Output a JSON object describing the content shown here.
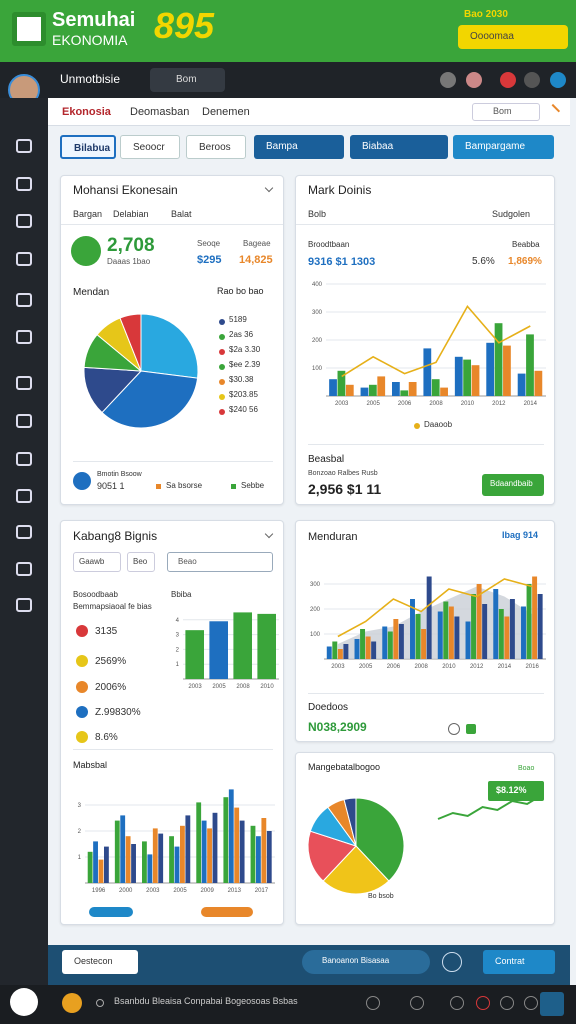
{
  "header": {
    "brand": "Semuhai",
    "brand_sub": "EKONOMIA",
    "score": "895",
    "note": "Bao 2030",
    "button": "Oooomaa"
  },
  "topbar": {
    "user": "Unmotbisie",
    "search": "Bom"
  },
  "nav": {
    "tabs": [
      "Ekonosia",
      "Deomasban",
      "Denemen"
    ],
    "search": "Bom"
  },
  "toolbar": [
    "Bilabua",
    "Seoocr",
    "Beroos",
    "Bampa",
    "Biabaa",
    "Bampargame"
  ],
  "card1": {
    "title": "Mohansi Ekonesain",
    "tabs": [
      "Bargan",
      "Delabian",
      "Balat"
    ],
    "kpi": "2,708",
    "kpi_sub": "Daaas 1bao",
    "stats": [
      {
        "label": "Seoqe",
        "value": "$295"
      },
      {
        "label": "Bageae",
        "value": "14,825"
      }
    ],
    "section": "Mendan",
    "section_right": "Rao bo bao",
    "pie": {
      "type": "pie",
      "values": [
        27,
        35,
        14,
        10,
        8,
        6
      ],
      "colors": [
        "#29a8e0",
        "#1e6fc0",
        "#2e4a8c",
        "#3aa53a",
        "#e6c619",
        "#d8383a"
      ]
    },
    "legend": [
      {
        "label": "5189",
        "color": "#2e4a8c"
      },
      {
        "label": "2as 36",
        "color": "#3aa53a"
      },
      {
        "label": "$2a 3.30",
        "color": "#d8383a"
      },
      {
        "label": "$ee 2.39",
        "color": "#3aa53a"
      },
      {
        "label": "$30.38",
        "color": "#e8872a"
      },
      {
        "label": "$203.85",
        "color": "#e6c619"
      },
      {
        "label": "$240 56",
        "color": "#d8383a"
      }
    ],
    "footer": {
      "name": "Bmotin Bsoow",
      "value": "9051 1",
      "links": [
        "Sa bsorse",
        "Sebbe"
      ]
    }
  },
  "card2": {
    "title": "Mark Doinis",
    "sub": "Bolb",
    "select": "Sudgolen",
    "stat_left": {
      "label": "Broodtbaan",
      "value": "9316 $1 1303"
    },
    "stat_right": {
      "label": "Beabba",
      "value": "5.6%",
      "value2": "1,869%"
    },
    "chart": {
      "type": "bar",
      "categories": [
        "2003",
        "2005",
        "2006",
        "2008",
        "2010",
        "2012",
        "2014"
      ],
      "ylim": [
        0,
        400
      ],
      "yticks": [
        100,
        200,
        300,
        400
      ],
      "series": [
        {
          "color": "#1e6fc0",
          "values": [
            60,
            30,
            50,
            170,
            140,
            190,
            80
          ]
        },
        {
          "color": "#3aa53a",
          "values": [
            90,
            40,
            20,
            60,
            130,
            260,
            220
          ]
        },
        {
          "color": "#e8872a",
          "values": [
            40,
            70,
            50,
            30,
            110,
            180,
            90
          ]
        }
      ],
      "line": {
        "color": "#e6b019",
        "values": [
          70,
          140,
          80,
          120,
          320,
          190,
          250
        ]
      }
    },
    "legend": "Daaoob",
    "section": "Beasbal",
    "section_sub": "Bonzoao Ralbes Rusb",
    "total": "2,956 $1 11",
    "button": "Bdaandbaib"
  },
  "card3": {
    "title": "Kabang8 Bignis",
    "filters": [
      "Gaawb",
      "Beo"
    ],
    "search": "Beao",
    "label": "Bosoodbaab",
    "label_sub": "Bemmapsiaoal fe bias",
    "mini_title": "Bbiba",
    "list": [
      {
        "value": "3135",
        "color": "#d8383a"
      },
      {
        "value": "2569%",
        "color": "#e6c619"
      },
      {
        "value": "2006%",
        "color": "#e8872a"
      },
      {
        "value": "Z.99830%",
        "color": "#1e6fc0"
      },
      {
        "value": "8.6%",
        "color": "#e6c619"
      }
    ],
    "mini": {
      "type": "bar",
      "categories": [
        "2003",
        "2005",
        "2008",
        "2010"
      ],
      "ylim": [
        0,
        5
      ],
      "yticks": [
        1,
        2,
        3,
        4
      ],
      "series": [
        {
          "colors": [
            "#3aa53a",
            "#1e6fc0",
            "#3aa53a",
            "#3aa53a"
          ],
          "values": [
            3.3,
            3.9,
            4.5,
            4.4
          ]
        }
      ]
    },
    "section": "Mabsbal",
    "grouped": {
      "type": "bar",
      "categories": [
        "1996",
        "2000",
        "2003",
        "2005",
        "2009",
        "2013",
        "2017"
      ],
      "ylim": [
        0,
        4
      ],
      "yticks": [
        1,
        2,
        3
      ],
      "series": [
        {
          "color": "#3aa53a",
          "values": [
            1.2,
            2.4,
            1.6,
            1.8,
            3.1,
            3.3,
            2.2
          ]
        },
        {
          "color": "#1e6fc0",
          "values": [
            1.6,
            2.6,
            1.1,
            1.4,
            2.4,
            3.6,
            1.8
          ]
        },
        {
          "color": "#e8872a",
          "values": [
            0.9,
            1.8,
            2.1,
            2.2,
            2.1,
            2.9,
            2.5
          ]
        },
        {
          "color": "#2e4a8c",
          "values": [
            1.4,
            1.5,
            1.9,
            2.6,
            2.7,
            2.4,
            2.0
          ]
        }
      ]
    }
  },
  "card4": {
    "title": "Menduran",
    "tag": "Ibag 914",
    "chart": {
      "type": "bar",
      "categories": [
        "2003",
        "2005",
        "2006",
        "2008",
        "2010",
        "2012",
        "2014",
        "2016"
      ],
      "ylim": [
        0,
        400
      ],
      "yticks": [
        100,
        200,
        300
      ],
      "area": {
        "color": "#c9ced6",
        "values": [
          60,
          110,
          130,
          190,
          240,
          290,
          250,
          180
        ]
      },
      "series": [
        {
          "color": "#1e6fc0",
          "values": [
            50,
            80,
            130,
            240,
            190,
            150,
            280,
            210
          ]
        },
        {
          "color": "#3aa53a",
          "values": [
            70,
            120,
            110,
            180,
            230,
            260,
            200,
            300
          ]
        },
        {
          "color": "#e8872a",
          "values": [
            40,
            90,
            160,
            120,
            210,
            300,
            170,
            330
          ]
        },
        {
          "color": "#2e4a8c",
          "values": [
            60,
            70,
            140,
            330,
            170,
            220,
            240,
            260
          ]
        }
      ],
      "line": {
        "color": "#e6b019",
        "values": [
          90,
          150,
          240,
          190,
          280,
          250,
          320,
          290
        ]
      }
    },
    "section": "Doedoos",
    "total": "N038,2909"
  },
  "card5": {
    "title": "Mangebatalbogoo",
    "pie": {
      "type": "pie",
      "values": [
        38,
        24,
        18,
        10,
        6,
        4
      ],
      "colors": [
        "#3aa53a",
        "#f0c419",
        "#e8505a",
        "#29a8e0",
        "#e8872a",
        "#2e4a8c"
      ]
    },
    "pie_caption": "Bo bsob",
    "spark": {
      "type": "line",
      "ylim": [
        0,
        8
      ],
      "values": [
        2,
        3,
        2.5,
        4,
        3.5,
        5,
        4.5,
        6
      ],
      "color": "#3aa53a"
    },
    "spark_caption": "Boao",
    "spark_value": "$8.12%"
  },
  "bottombar": {
    "left": "Oestecon",
    "middle": "Banoanon Bisasaa",
    "right": "Contrat"
  },
  "footer": {
    "text": "Bsanbdu Bleaisa Conpabai Bogeosoas Bsbas"
  }
}
